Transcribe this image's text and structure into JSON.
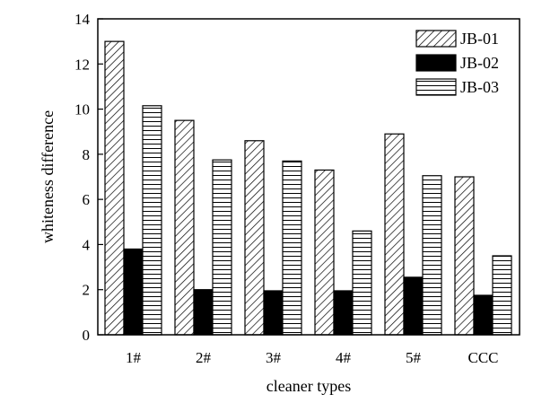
{
  "chart_data": {
    "type": "bar",
    "xlabel": "cleaner types",
    "ylabel": "whiteness difference",
    "ylim": [
      0,
      14
    ],
    "yticks": [
      0,
      2,
      4,
      6,
      8,
      10,
      12,
      14
    ],
    "categories": [
      "1#",
      "2#",
      "3#",
      "4#",
      "5#",
      "CCC"
    ],
    "series": [
      {
        "name": "JB-01",
        "pattern": "diagonal-hatch",
        "values": [
          13.0,
          9.5,
          8.6,
          7.3,
          8.9,
          7.0
        ]
      },
      {
        "name": "JB-02",
        "pattern": "solid-black",
        "values": [
          3.8,
          2.0,
          1.95,
          1.95,
          2.55,
          1.75
        ]
      },
      {
        "name": "JB-03",
        "pattern": "horizontal-lines",
        "values": [
          10.15,
          7.75,
          7.7,
          4.6,
          7.05,
          3.5
        ]
      }
    ],
    "legend_position": "top-right",
    "grid": false
  }
}
